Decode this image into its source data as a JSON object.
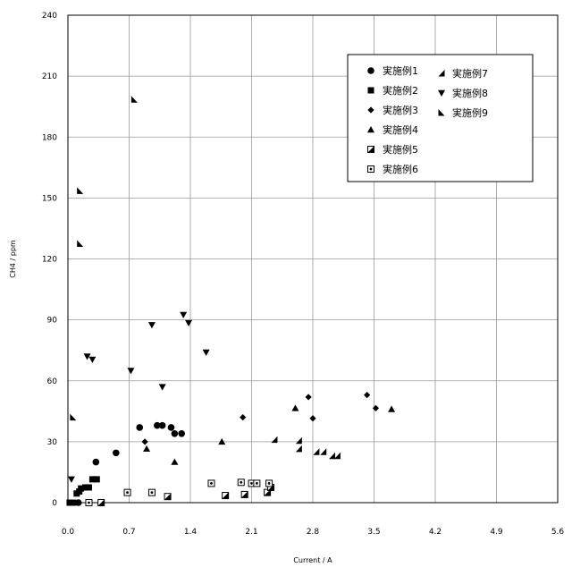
{
  "chart_data": {
    "type": "scatter",
    "xlabel": "Current / A",
    "ylabel": "CH4 / ppm",
    "xlim": [
      0,
      5.6
    ],
    "ylim": [
      0,
      240
    ],
    "xticks": [
      "0.0",
      "0.7",
      "1.4",
      "2.1",
      "2.8",
      "3.5",
      "4.2",
      "4.9",
      "5.6"
    ],
    "yticks": [
      "0",
      "30",
      "60",
      "90",
      "120",
      "150",
      "180",
      "210",
      "240"
    ],
    "grid": true,
    "legend_position": "top-right",
    "series": [
      {
        "name": "実施例1",
        "marker": "circle",
        "points": [
          [
            0.12,
            0
          ],
          [
            0.32,
            20
          ],
          [
            0.55,
            24.5
          ],
          [
            0.82,
            37
          ],
          [
            1.02,
            38
          ],
          [
            1.08,
            38
          ],
          [
            1.18,
            37
          ],
          [
            1.22,
            34
          ],
          [
            1.3,
            34
          ]
        ]
      },
      {
        "name": "実施例2",
        "marker": "square",
        "points": [
          [
            0.02,
            0
          ],
          [
            0.06,
            0
          ],
          [
            0.1,
            4.5
          ],
          [
            0.13,
            5.5
          ],
          [
            0.15,
            7
          ],
          [
            0.2,
            7.5
          ],
          [
            0.24,
            7.5
          ],
          [
            0.28,
            11.5
          ],
          [
            0.33,
            11.5
          ]
        ]
      },
      {
        "name": "実施例3",
        "marker": "diamond",
        "points": [
          [
            0.88,
            30
          ],
          [
            2.0,
            42
          ],
          [
            2.75,
            52
          ],
          [
            2.8,
            41.5
          ],
          [
            3.42,
            53
          ],
          [
            3.52,
            46.5
          ]
        ]
      },
      {
        "name": "実施例4",
        "marker": "triangle-up",
        "points": [
          [
            0.9,
            26.5
          ],
          [
            1.22,
            20
          ],
          [
            1.76,
            30
          ],
          [
            2.6,
            46.5
          ],
          [
            3.7,
            46
          ]
        ]
      },
      {
        "name": "実施例5",
        "marker": "half-square",
        "points": [
          [
            0.38,
            0
          ],
          [
            1.14,
            3
          ],
          [
            1.8,
            3.5
          ],
          [
            2.02,
            4
          ],
          [
            2.28,
            5
          ],
          [
            2.32,
            7.5
          ]
        ]
      },
      {
        "name": "実施例6",
        "marker": "open-square",
        "points": [
          [
            0.24,
            0
          ],
          [
            0.68,
            5
          ],
          [
            0.96,
            5
          ],
          [
            1.64,
            9.5
          ],
          [
            1.98,
            10
          ],
          [
            2.1,
            9.5
          ],
          [
            2.16,
            9.5
          ],
          [
            2.3,
            9.5
          ]
        ]
      },
      {
        "name": "実施例7",
        "marker": "half-triangle",
        "points": [
          [
            2.36,
            31
          ],
          [
            2.64,
            26.5
          ],
          [
            2.64,
            30.5
          ],
          [
            2.84,
            25
          ],
          [
            2.92,
            25
          ],
          [
            3.02,
            23
          ],
          [
            3.08,
            23
          ]
        ]
      },
      {
        "name": "実施例8",
        "marker": "triangle-down",
        "points": [
          [
            0.04,
            11.5
          ],
          [
            0.22,
            72
          ],
          [
            0.28,
            70.5
          ],
          [
            0.72,
            65
          ],
          [
            0.96,
            87.5
          ],
          [
            1.08,
            57
          ],
          [
            1.32,
            92.5
          ],
          [
            1.38,
            88.5
          ],
          [
            1.58,
            74
          ]
        ]
      },
      {
        "name": "実施例9",
        "marker": "flag-triangle",
        "points": [
          [
            0.06,
            42
          ],
          [
            0.14,
            127.5
          ],
          [
            0.14,
            153.5
          ],
          [
            0.76,
            198.5
          ]
        ]
      }
    ]
  }
}
